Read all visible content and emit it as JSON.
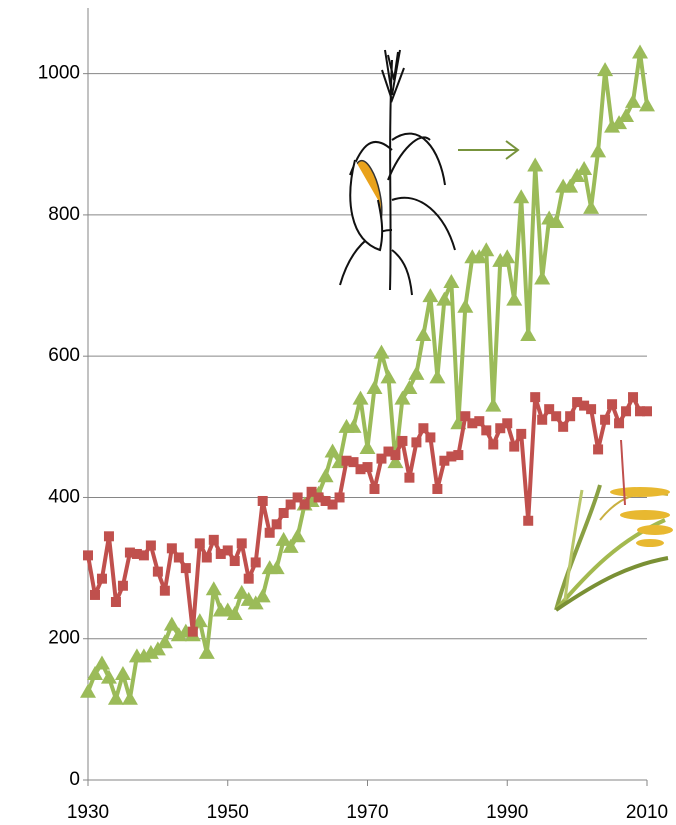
{
  "chart_data": {
    "type": "line",
    "x": [
      1930,
      1931,
      1932,
      1933,
      1934,
      1935,
      1936,
      1937,
      1938,
      1939,
      1940,
      1941,
      1942,
      1943,
      1944,
      1945,
      1946,
      1947,
      1948,
      1949,
      1950,
      1951,
      1952,
      1953,
      1954,
      1955,
      1956,
      1957,
      1958,
      1959,
      1960,
      1961,
      1962,
      1963,
      1964,
      1965,
      1966,
      1967,
      1968,
      1969,
      1970,
      1971,
      1972,
      1973,
      1974,
      1975,
      1976,
      1977,
      1978,
      1979,
      1980,
      1981,
      1982,
      1983,
      1984,
      1985,
      1986,
      1987,
      1988,
      1989,
      1990,
      1991,
      1992,
      1993,
      1994,
      1995,
      1996,
      1997,
      1998,
      1999,
      2000,
      2001,
      2002,
      2003,
      2004,
      2005,
      2006,
      2007,
      2008,
      2009,
      2010
    ],
    "series": [
      {
        "color": "#9bbb59",
        "marker": "triangle",
        "values": [
          125,
          150,
          165,
          145,
          115,
          150,
          115,
          175,
          175,
          180,
          185,
          195,
          220,
          205,
          210,
          205,
          225,
          180,
          270,
          240,
          240,
          235,
          265,
          255,
          250,
          260,
          300,
          300,
          340,
          330,
          345,
          390,
          395,
          405,
          430,
          465,
          450,
          500,
          500,
          540,
          470,
          555,
          605,
          570,
          450,
          540,
          555,
          575,
          630,
          685,
          570,
          680,
          705,
          505,
          670,
          740,
          740,
          750,
          530,
          735,
          740,
          680,
          825,
          630,
          870,
          710,
          795,
          790,
          840,
          840,
          855,
          865,
          810,
          890,
          1005,
          925,
          930,
          940,
          960,
          1030,
          955
        ]
      },
      {
        "color": "#c0504d",
        "marker": "square",
        "values": [
          318,
          262,
          285,
          345,
          252,
          275,
          322,
          320,
          318,
          332,
          295,
          268,
          328,
          315,
          300,
          210,
          335,
          315,
          340,
          320,
          325,
          310,
          335,
          285,
          308,
          395,
          350,
          362,
          378,
          390,
          400,
          390,
          408,
          400,
          395,
          390,
          400,
          452,
          450,
          440,
          443,
          412,
          455,
          465,
          460,
          480,
          428,
          478,
          498,
          485,
          412,
          452,
          458,
          460,
          515,
          505,
          508,
          495,
          475,
          498,
          505,
          472,
          490,
          367,
          542,
          510,
          525,
          515,
          500,
          515,
          535,
          530,
          525,
          468,
          510,
          532,
          505,
          522,
          542,
          522,
          522
        ]
      }
    ],
    "xlim": [
      1930,
      2010
    ],
    "xticks": [
      1930,
      1950,
      1970,
      1990,
      2010
    ],
    "ylim": [
      0,
      1100
    ],
    "yticks": [
      0,
      200,
      400,
      600,
      800,
      1000
    ],
    "grid": true
  }
}
